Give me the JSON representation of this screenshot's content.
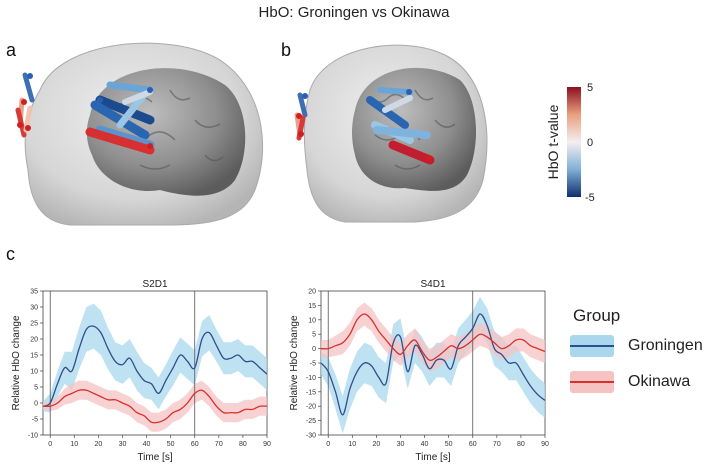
{
  "figure": {
    "title": "HbO: Groningen vs Okinawa",
    "panel_labels": [
      "a",
      "b",
      "c"
    ]
  },
  "brain_panels": [
    {
      "label": "a",
      "image": "3D head with cortex, channel tubes colored by HbO t-value"
    },
    {
      "label": "b",
      "image": "3D head with cortex, channel tubes colored by HbO t-value"
    }
  ],
  "colorbar": {
    "label": "HbO t-value",
    "ticks": [
      "5",
      "0",
      "-5"
    ],
    "colors": {
      "high": "#8b0f1e",
      "mid_high": "#e8a07f",
      "mid": "#f4efef",
      "mid_low": "#7fb0d6",
      "low": "#0f2f6e"
    }
  },
  "legend": {
    "title": "Group",
    "entries": [
      {
        "name": "Groningen",
        "line_color": "#2f4e8c",
        "fill_color": "#a9d8ee"
      },
      {
        "name": "Okinawa",
        "line_color": "#d9302e",
        "fill_color": "#f6c3c3"
      }
    ]
  },
  "chart_data": [
    {
      "type": "line",
      "title": "S2D1",
      "xlabel": "Time [s]",
      "ylabel": "Relative HbO change",
      "xlim": [
        -3,
        90
      ],
      "ylim": [
        -10,
        35
      ],
      "xticks": [
        "0",
        "10",
        "20",
        "30",
        "40",
        "50",
        "60",
        "70",
        "80",
        "90"
      ],
      "yticks": [
        "-10",
        "-5",
        "0",
        "5",
        "10",
        "15",
        "20",
        "25",
        "30",
        "35"
      ],
      "vlines": [
        0,
        60
      ],
      "series": [
        {
          "name": "Groningen",
          "x": [
            -3,
            0,
            3,
            6,
            9,
            12,
            15,
            18,
            21,
            24,
            27,
            30,
            33,
            36,
            39,
            42,
            45,
            48,
            51,
            54,
            57,
            60,
            63,
            66,
            69,
            72,
            75,
            78,
            81,
            84,
            87,
            90
          ],
          "y": [
            -1,
            0,
            6,
            11,
            10,
            17,
            23,
            24,
            22,
            17,
            13,
            12,
            14,
            10,
            7,
            6,
            3,
            7,
            11,
            15,
            13,
            11,
            20,
            22,
            18,
            14,
            14,
            15,
            13,
            13,
            11,
            9
          ],
          "ci": [
            1.5,
            3,
            4,
            5,
            6,
            6.5,
            7,
            7,
            7,
            6.5,
            6,
            6,
            6,
            6,
            5.5,
            5,
            5,
            5,
            5.5,
            5.5,
            5.5,
            5.5,
            5.5,
            5.5,
            5,
            5,
            5,
            5,
            5,
            5,
            5,
            5
          ]
        },
        {
          "name": "Okinawa",
          "x": [
            -3,
            0,
            3,
            6,
            9,
            12,
            15,
            18,
            21,
            24,
            27,
            30,
            33,
            36,
            39,
            42,
            45,
            48,
            51,
            54,
            57,
            60,
            63,
            66,
            69,
            72,
            75,
            78,
            81,
            84,
            87,
            90
          ],
          "y": [
            -1,
            -1,
            0,
            2,
            3,
            4,
            4,
            3,
            2,
            1,
            1,
            0,
            -1,
            -3,
            -4,
            -6,
            -6,
            -5,
            -3,
            -2,
            0,
            3,
            4,
            2,
            -1,
            -3,
            -3,
            -3,
            -2,
            -2,
            -1,
            -1
          ],
          "ci": [
            1,
            1.5,
            2,
            2.5,
            3,
            3,
            3,
            3,
            3,
            3,
            3,
            3,
            3,
            3,
            3,
            3,
            3,
            3,
            3,
            3,
            3,
            3,
            3,
            3,
            3,
            3,
            3,
            3,
            3,
            3,
            3,
            3
          ]
        }
      ]
    },
    {
      "type": "line",
      "title": "S4D1",
      "xlabel": "Time [s]",
      "ylabel": "Relative HbO change",
      "xlim": [
        -3,
        90
      ],
      "ylim": [
        -30,
        20
      ],
      "xticks": [
        "0",
        "10",
        "20",
        "30",
        "40",
        "50",
        "60",
        "70",
        "80",
        "90"
      ],
      "yticks": [
        "-30",
        "-25",
        "-20",
        "-15",
        "-10",
        "-5",
        "0",
        "5",
        "10",
        "15",
        "20"
      ],
      "vlines": [
        0,
        60
      ],
      "series": [
        {
          "name": "Groningen",
          "x": [
            -3,
            0,
            3,
            6,
            9,
            12,
            15,
            18,
            21,
            24,
            27,
            30,
            33,
            36,
            39,
            42,
            45,
            48,
            51,
            54,
            57,
            60,
            63,
            66,
            69,
            72,
            75,
            78,
            81,
            84,
            87,
            90
          ],
          "y": [
            -5,
            -8,
            -15,
            -23,
            -14,
            -8,
            -5,
            -6,
            -10,
            -12,
            2,
            4,
            -8,
            1,
            -2,
            -7,
            -4,
            -4,
            -7,
            1,
            4,
            7,
            12,
            8,
            0,
            -2,
            -5,
            -5,
            -9,
            -13,
            -16,
            -18
          ],
          "ci": [
            4,
            5,
            6,
            6.5,
            7,
            7,
            7,
            7,
            7,
            7,
            6.5,
            6.5,
            6,
            6,
            6,
            6,
            6,
            6,
            6,
            6,
            6,
            6,
            6,
            6,
            6,
            6,
            6,
            6,
            6,
            6,
            6,
            6
          ]
        },
        {
          "name": "Okinawa",
          "x": [
            -3,
            0,
            3,
            6,
            9,
            12,
            15,
            18,
            21,
            24,
            27,
            30,
            33,
            36,
            39,
            42,
            45,
            48,
            51,
            54,
            57,
            60,
            63,
            66,
            69,
            72,
            75,
            78,
            81,
            84,
            87,
            90
          ],
          "y": [
            0,
            0,
            1,
            2,
            5,
            10,
            12,
            10,
            6,
            3,
            0,
            -2,
            1,
            3,
            -1,
            -4,
            -3,
            -1,
            1,
            0,
            1,
            3,
            5,
            4,
            2,
            0,
            1,
            3,
            3,
            1,
            0,
            -1
          ],
          "ci": [
            3,
            3,
            3.5,
            4,
            4,
            4,
            4,
            4,
            4,
            4,
            4,
            4,
            4,
            4,
            4,
            4,
            4,
            4,
            4,
            4,
            4,
            4,
            4,
            4,
            4,
            4,
            4,
            4,
            4,
            4,
            4,
            4
          ]
        }
      ]
    }
  ]
}
